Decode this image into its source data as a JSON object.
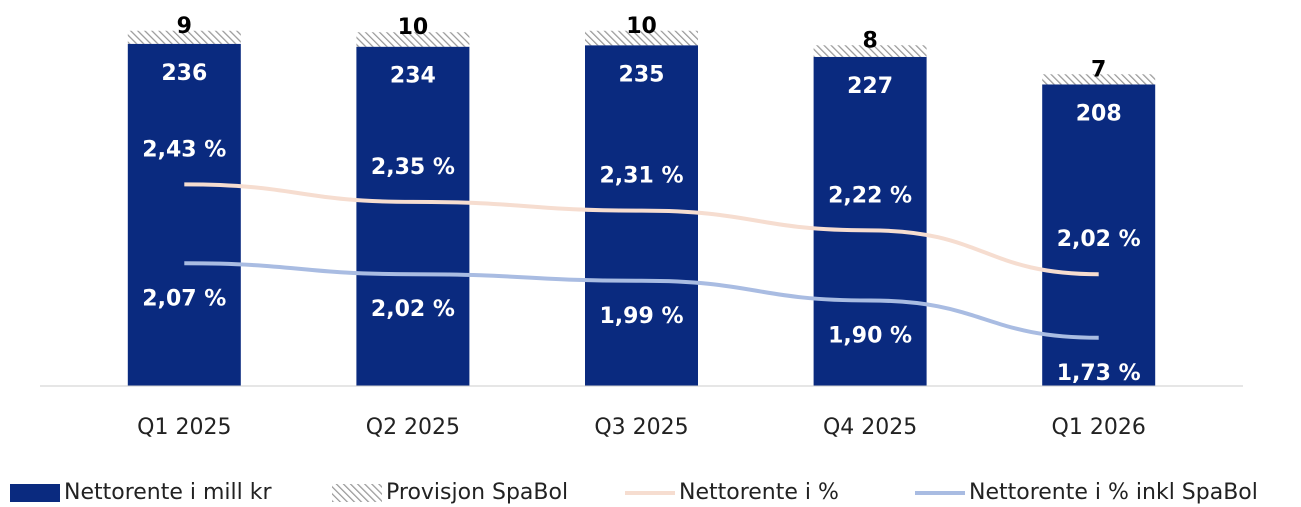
{
  "chart_data": {
    "type": "bar",
    "categories": [
      "Q1 2025",
      "Q2 2025",
      "Q3 2025",
      "Q4 2025",
      "Q1 2026"
    ],
    "stacked": true,
    "ylim": [
      0,
      260
    ],
    "y2lim": [
      1.51,
      3.23
    ],
    "series": [
      {
        "name": "Nettorente i mill kr",
        "type": "bar",
        "color": "#0a2a7f",
        "values": [
          236,
          234,
          235,
          227,
          208
        ]
      },
      {
        "name": "Provisjon SpaBol",
        "type": "bar",
        "color": "#999999",
        "hatch": true,
        "values": [
          9,
          10,
          10,
          8,
          7
        ]
      },
      {
        "name": "Nettorente i %",
        "type": "line",
        "axis": "y2",
        "color": "#f6ddd0",
        "values": [
          2.43,
          2.35,
          2.31,
          2.22,
          2.02
        ],
        "value_labels": [
          "2,43 %",
          "2,35 %",
          "2,31 %",
          "2,22 %",
          "2,02 %"
        ]
      },
      {
        "name": "Nettorente i % inkl SpaBol",
        "type": "line",
        "axis": "y2",
        "color": "#a9bce2",
        "values": [
          2.07,
          2.02,
          1.99,
          1.9,
          1.73
        ],
        "value_labels": [
          "2,07 %",
          "2,02 %",
          "1,99 %",
          "1,90 %",
          "1,73 %"
        ]
      }
    ]
  }
}
